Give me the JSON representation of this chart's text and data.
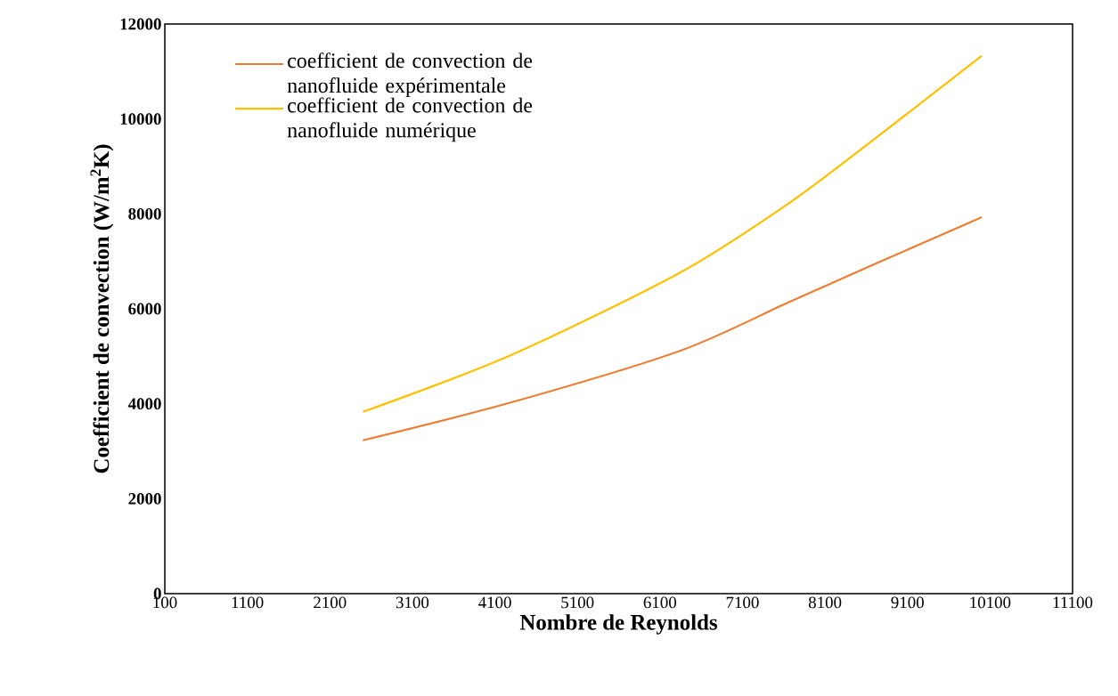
{
  "chart_data": {
    "type": "line",
    "xlabel": "Nombre de Reynolds",
    "ylabel": "Coefficient de convection (W/m$^{2}$K)",
    "xlim": [
      100,
      11100
    ],
    "xticks": [
      100,
      1100,
      2100,
      3100,
      4100,
      5100,
      6100,
      7100,
      8100,
      9100,
      10100,
      11100
    ],
    "ylim": [
      0,
      12000
    ],
    "yticks": [
      0,
      2000,
      4000,
      6000,
      8000,
      10000,
      12000
    ],
    "grid": false,
    "legend": "top left",
    "marker": "none",
    "line_style": "solid",
    "series": [
      {
        "name": "coefficient de convection de nanofluide expérimentale",
        "color": "#ed7d31",
        "x": [
          2500,
          4300,
          6350,
          7650,
          8700,
          10000
        ],
        "values": [
          3230,
          4030,
          5120,
          6130,
          6940,
          7930
        ]
      },
      {
        "name": "coefficient de convection de nanofluide numérique",
        "color": "#ffc000",
        "x": [
          2500,
          4300,
          6350,
          7650,
          8700,
          10000
        ],
        "values": [
          3830,
          5030,
          6770,
          8210,
          9580,
          11330
        ]
      }
    ]
  }
}
